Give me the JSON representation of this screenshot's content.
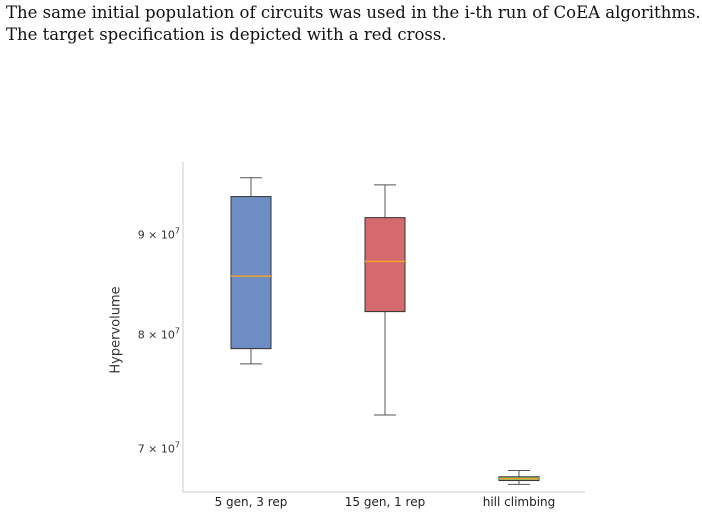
{
  "caption": {
    "line1": "The same initial population of circuits was used in the i-th run of CoEA algorithms.",
    "line2": "The target specification is depicted with a red cross."
  },
  "chart_data": {
    "type": "box",
    "title": "",
    "xlabel": "",
    "ylabel": "Hypervolume",
    "y_scale": "log",
    "ylim": [
      66500000,
      98000000
    ],
    "yticks": [
      {
        "value": 70000000,
        "label": "7 × 10",
        "exp": "7"
      },
      {
        "value": 80000000,
        "label": "8 × 10",
        "exp": "7"
      },
      {
        "value": 90000000,
        "label": "9 × 10",
        "exp": "7"
      }
    ],
    "categories": [
      "5 gen, 3 rep",
      "15 gen, 1 rep",
      "hill climbing"
    ],
    "boxes": [
      {
        "category": "5 gen, 3 rep",
        "whisker_low": 77300000,
        "q1": 78700000,
        "median": 85700000,
        "q3": 94100000,
        "whisker_high": 96200000,
        "color": "#6e8dc5"
      },
      {
        "category": "15 gen, 1 rep",
        "whisker_low": 72800000,
        "q1": 82200000,
        "median": 87200000,
        "q3": 91800000,
        "whisker_high": 95400000,
        "color": "#d46a6e"
      },
      {
        "category": "hill climbing",
        "whisker_low": 67100000,
        "q1": 67400000,
        "median": 67550000,
        "q3": 67700000,
        "whisker_high": 68200000,
        "color": "#7cbf6a"
      }
    ],
    "median_color": "#f0a030",
    "grid": false
  }
}
